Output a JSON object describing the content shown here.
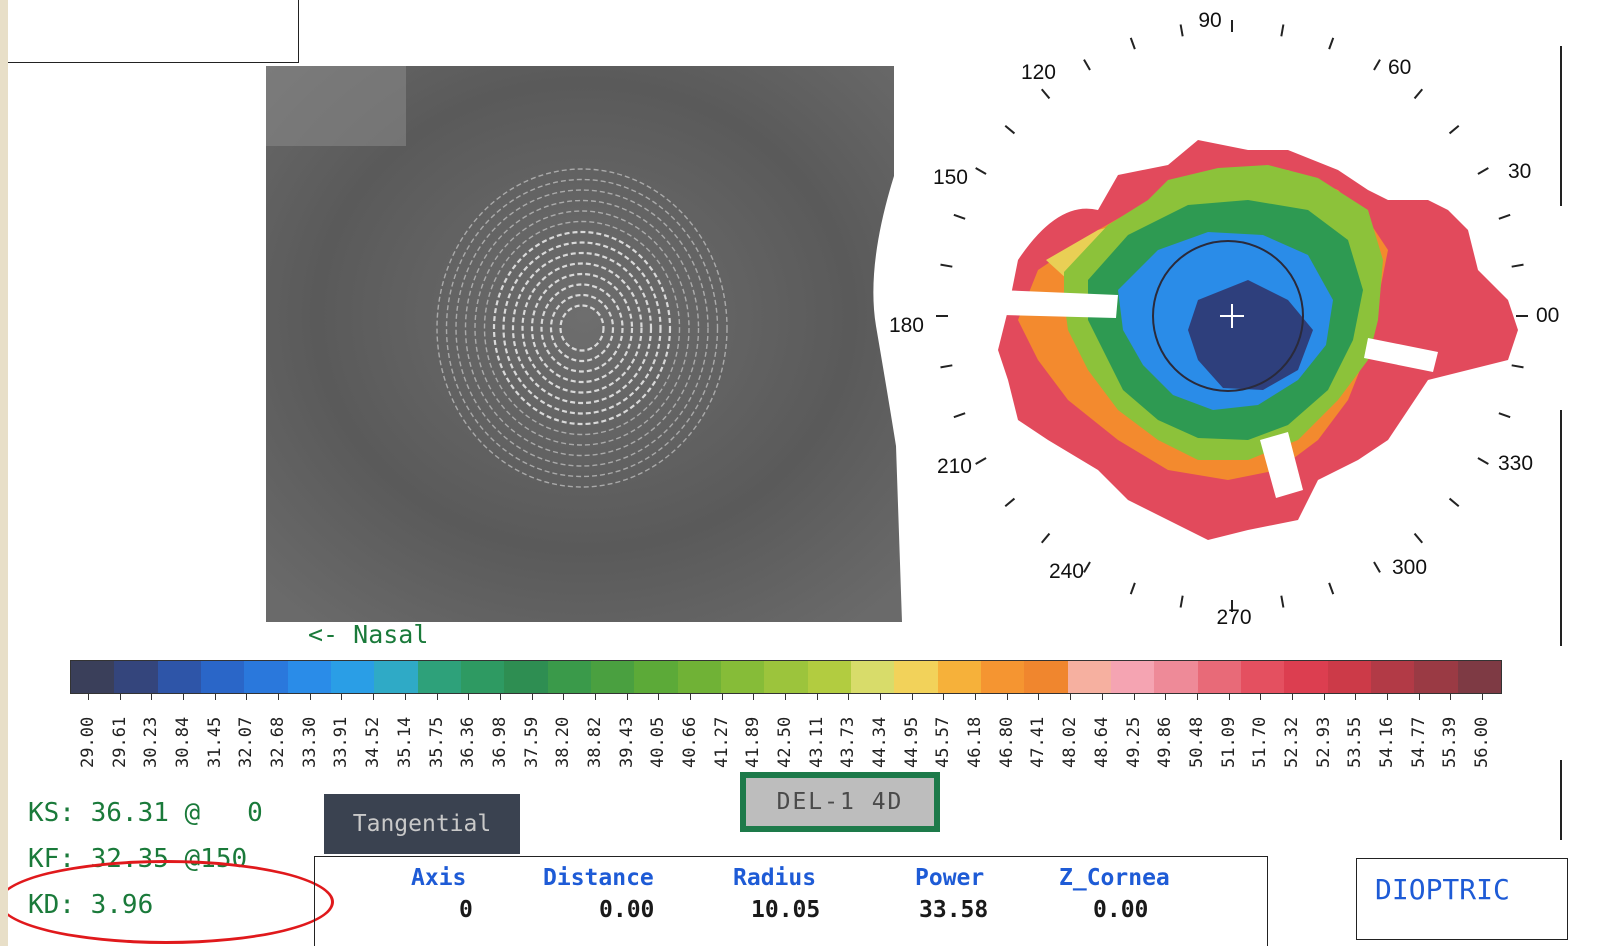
{
  "image_label": "<- Nasal",
  "axis_labels": [
    {
      "text": "90"
    },
    {
      "text": "120"
    },
    {
      "text": "60"
    },
    {
      "text": "150"
    },
    {
      "text": "30"
    },
    {
      "text": "180"
    },
    {
      "text": "00"
    },
    {
      "text": "210"
    },
    {
      "text": "330"
    },
    {
      "text": "240"
    },
    {
      "text": "300"
    },
    {
      "text": "270"
    }
  ],
  "scale": {
    "colors": [
      "#3a3f5a",
      "#34457c",
      "#2e55a8",
      "#2a66c8",
      "#2a78dc",
      "#2a8ce8",
      "#2a9ee6",
      "#2faac6",
      "#2ea17a",
      "#2e9a62",
      "#2e8e52",
      "#3a9a4a",
      "#4aa040",
      "#5caa38",
      "#70b236",
      "#86bc38",
      "#9cc43c",
      "#b2cc40",
      "#d8dc6a",
      "#f2d25a",
      "#f6b13a",
      "#f59531",
      "#f0862e",
      "#f6b0a0",
      "#f5a4b2",
      "#ee8a98",
      "#e86a78",
      "#e45060",
      "#dc3e50",
      "#cc3a48",
      "#b23a46",
      "#9a3a44",
      "#7e3a44"
    ],
    "labels": [
      "29.00",
      "29.61",
      "30.23",
      "30.84",
      "31.45",
      "32.07",
      "32.68",
      "33.30",
      "33.91",
      "34.52",
      "35.14",
      "35.75",
      "36.36",
      "36.98",
      "37.59",
      "38.20",
      "38.82",
      "39.43",
      "40.05",
      "40.66",
      "41.27",
      "41.89",
      "42.50",
      "43.11",
      "43.73",
      "44.34",
      "44.95",
      "45.57",
      "46.18",
      "46.80",
      "47.41",
      "48.02",
      "48.64",
      "49.25",
      "49.86",
      "50.48",
      "51.09",
      "51.70",
      "52.32",
      "52.93",
      "53.55",
      "54.16",
      "54.77",
      "55.39",
      "56.00"
    ]
  },
  "keratometry": {
    "ks": "KS: 36.31 @   0",
    "kf": "KF: 32.35 @150",
    "kd": "KD: 3.96"
  },
  "map_type_button": "Tangential",
  "delta_button": "DEL-1 4D",
  "measurements": {
    "headers": [
      "Axis",
      "Distance",
      "Radius",
      "Power",
      "Z_Cornea"
    ],
    "values": [
      "0",
      "0.00",
      "10.05",
      "33.58",
      "0.00"
    ]
  },
  "mode_label": "DIOPTRIC"
}
